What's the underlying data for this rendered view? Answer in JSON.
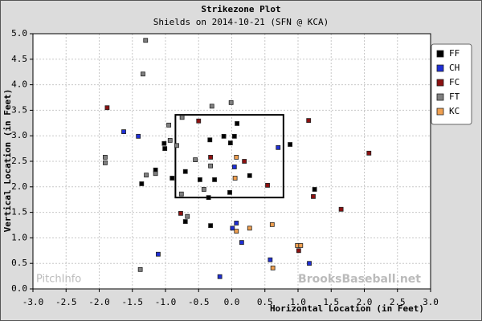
{
  "chart_data": {
    "type": "scatter",
    "title": "Strikezone Plot",
    "subtitle": "Shields on 2014-10-21 (SFN @ KCA)",
    "x_label": "Horizontal Location (in Feet)",
    "y_label": "Vertical Location (in Feet)",
    "watermarks": [
      "PitchInfo",
      "BrooksBaseball.net"
    ],
    "xlim": [
      -3.0,
      3.0
    ],
    "ylim": [
      0.0,
      5.0
    ],
    "grid": true,
    "legend": "right",
    "xticks": [
      {
        "value": -3.0,
        "label": "-3.0"
      },
      {
        "value": -2.5,
        "label": "-2.5"
      },
      {
        "value": -2.0,
        "label": "-2.0"
      },
      {
        "value": -1.5,
        "label": "-1.5"
      },
      {
        "value": -1.0,
        "label": "-1.0"
      },
      {
        "value": -0.5,
        "label": "-0.5"
      },
      {
        "value": 0.0,
        "label": "0.0"
      },
      {
        "value": 0.5,
        "label": "0.5"
      },
      {
        "value": 1.0,
        "label": "1.0"
      },
      {
        "value": 1.5,
        "label": "1.5"
      },
      {
        "value": 2.0,
        "label": "2.0"
      },
      {
        "value": 2.5,
        "label": "2.5"
      },
      {
        "value": 3.0,
        "label": "3.0"
      }
    ],
    "yticks": [
      {
        "value": 0.0,
        "label": "0.0"
      },
      {
        "value": 0.5,
        "label": "0.5"
      },
      {
        "value": 1.0,
        "label": "1.0"
      },
      {
        "value": 1.5,
        "label": "1.5"
      },
      {
        "value": 2.0,
        "label": "2.0"
      },
      {
        "value": 2.5,
        "label": "2.5"
      },
      {
        "value": 3.0,
        "label": "3.0"
      },
      {
        "value": 3.5,
        "label": "3.5"
      },
      {
        "value": 4.0,
        "label": "4.0"
      },
      {
        "value": 4.5,
        "label": "4.5"
      },
      {
        "value": 5.0,
        "label": "5.0"
      }
    ],
    "zone": {
      "x": [
        -0.85,
        0.78
      ],
      "y": [
        1.79,
        3.41
      ]
    },
    "series": [
      {
        "name": "FF",
        "color": "#000000",
        "x": [
          -1.02,
          -1.01,
          -0.7,
          -0.48,
          -0.26,
          -0.33,
          -0.12,
          0.08,
          0.04,
          -0.02,
          0.27,
          -0.03,
          0.88,
          1.25,
          -1.36,
          -0.9,
          -0.35,
          -0.32,
          -0.7,
          -1.15
        ],
        "y": [
          2.85,
          2.75,
          2.3,
          2.14,
          2.14,
          2.92,
          2.99,
          3.24,
          2.99,
          2.86,
          2.22,
          1.89,
          2.83,
          1.95,
          2.06,
          2.17,
          1.79,
          1.24,
          1.32,
          2.33
        ]
      },
      {
        "name": "CH",
        "color": "#1f2fd6",
        "x": [
          -1.63,
          -1.41,
          0.7,
          0.04,
          0.07,
          0.01,
          0.15,
          0.58,
          1.17,
          -1.11,
          -0.18
        ],
        "y": [
          3.08,
          2.99,
          2.77,
          2.39,
          1.29,
          1.19,
          0.91,
          0.57,
          0.5,
          0.68,
          0.24
        ]
      },
      {
        "name": "FC",
        "color": "#8b1010",
        "x": [
          -1.88,
          -0.5,
          1.16,
          2.07,
          -0.32,
          0.19,
          0.54,
          -0.77,
          1.23,
          1.65,
          1.01
        ],
        "y": [
          3.55,
          3.29,
          3.3,
          2.66,
          2.58,
          2.5,
          2.03,
          1.48,
          1.81,
          1.56,
          0.75
        ]
      },
      {
        "name": "FT",
        "color": "#808080",
        "x": [
          -1.3,
          -1.34,
          -0.3,
          -0.01,
          -0.75,
          -0.95,
          -0.93,
          -0.83,
          -0.55,
          -0.32,
          -1.29,
          -1.15,
          -1.91,
          -1.91,
          -0.76,
          -0.42,
          -0.67,
          -1.38
        ],
        "y": [
          4.87,
          4.21,
          3.58,
          3.65,
          3.36,
          3.21,
          2.91,
          2.81,
          2.53,
          2.41,
          2.23,
          2.26,
          2.58,
          2.47,
          1.86,
          1.95,
          1.42,
          0.38
        ]
      },
      {
        "name": "KC",
        "color": "#f0a050",
        "x": [
          0.07,
          0.05,
          0.27,
          0.61,
          0.07,
          0.99,
          1.04,
          0.62
        ],
        "y": [
          2.58,
          2.17,
          1.19,
          1.26,
          1.13,
          0.85,
          0.85,
          0.41
        ]
      }
    ]
  }
}
